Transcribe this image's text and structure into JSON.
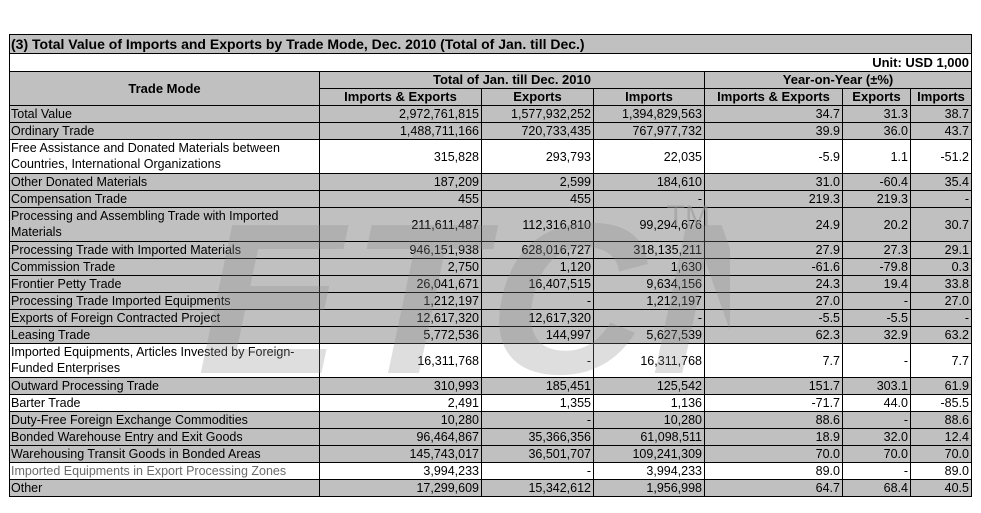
{
  "table": {
    "title": "(3) Total Value of Imports and Exports by Trade Mode, Dec. 2010 (Total of Jan. till Dec.)",
    "unit": "Unit: USD 1,000",
    "headers": {
      "trade_mode": "Trade Mode",
      "group_total": "Total of Jan. till Dec. 2010",
      "group_yoy": "Year-on-Year (±%)",
      "imports_exports": "Imports & Exports",
      "exports": "Exports",
      "imports": "Imports",
      "yoy_imports_exports": "Imports & Exports",
      "yoy_exports": "Exports",
      "yoy_imports": "Imports"
    },
    "rows": [
      {
        "mode": "Total Value",
        "ie": "2,972,761,815",
        "ex": "1,577,932,252",
        "im": "1,394,829,563",
        "yie": "34.7",
        "yex": "31.3",
        "yim": "38.7"
      },
      {
        "mode": "Ordinary Trade",
        "ie": "1,488,711,166",
        "ex": "720,733,435",
        "im": "767,977,732",
        "yie": "39.9",
        "yex": "36.0",
        "yim": "43.7"
      },
      {
        "mode": "Free Assistance and Donated Materials between Countries, International Organizations",
        "ie": "315,828",
        "ex": "293,793",
        "im": "22,035",
        "yie": "-5.9",
        "yex": "1.1",
        "yim": "-51.2"
      },
      {
        "mode": "Other Donated Materials",
        "ie": "187,209",
        "ex": "2,599",
        "im": "184,610",
        "yie": "31.0",
        "yex": "-60.4",
        "yim": "35.4"
      },
      {
        "mode": "Compensation Trade",
        "ie": "455",
        "ex": "455",
        "im": "-",
        "yie": "219.3",
        "yex": "219.3",
        "yim": "-"
      },
      {
        "mode": "Processing and Assembling Trade with Imported Materials",
        "ie": "211,611,487",
        "ex": "112,316,810",
        "im": "99,294,676",
        "yie": "24.9",
        "yex": "20.2",
        "yim": "30.7"
      },
      {
        "mode": "Processing Trade with Imported Materials",
        "ie": "946,151,938",
        "ex": "628,016,727",
        "im": "318,135,211",
        "yie": "27.9",
        "yex": "27.3",
        "yim": "29.1"
      },
      {
        "mode": "Commission Trade",
        "ie": "2,750",
        "ex": "1,120",
        "im": "1,630",
        "yie": "-61.6",
        "yex": "-79.8",
        "yim": "0.3"
      },
      {
        "mode": "Frontier Petty Trade",
        "ie": "26,041,671",
        "ex": "16,407,515",
        "im": "9,634,156",
        "yie": "24.3",
        "yex": "19.4",
        "yim": "33.8"
      },
      {
        "mode": "Processing Trade Imported Equipments",
        "ie": "1,212,197",
        "ex": "-",
        "im": "1,212,197",
        "yie": "27.0",
        "yex": "-",
        "yim": "27.0"
      },
      {
        "mode": "Exports of Foreign Contracted Project",
        "ie": "12,617,320",
        "ex": "12,617,320",
        "im": "-",
        "yie": "-5.5",
        "yex": "-5.5",
        "yim": "-"
      },
      {
        "mode": "Leasing Trade",
        "ie": "5,772,536",
        "ex": "144,997",
        "im": "5,627,539",
        "yie": "62.3",
        "yex": "32.9",
        "yim": "63.2"
      },
      {
        "mode": "Imported Equipments, Articles Invested by Foreign-Funded Enterprises",
        "ie": "16,311,768",
        "ex": "-",
        "im": "16,311,768",
        "yie": "7.7",
        "yex": "-",
        "yim": "7.7"
      },
      {
        "mode": "Outward Processing Trade",
        "ie": "310,993",
        "ex": "185,451",
        "im": "125,542",
        "yie": "151.7",
        "yex": "303.1",
        "yim": "61.9"
      },
      {
        "mode": "Barter Trade",
        "ie": "2,491",
        "ex": "1,355",
        "im": "1,136",
        "yie": "-71.7",
        "yex": "44.0",
        "yim": "-85.5"
      },
      {
        "mode": "Duty-Free Foreign Exchange Commodities",
        "ie": "10,280",
        "ex": "-",
        "im": "10,280",
        "yie": "88.6",
        "yex": "-",
        "yim": "88.6"
      },
      {
        "mode": "Bonded Warehouse Entry and Exit Goods",
        "ie": "96,464,867",
        "ex": "35,366,356",
        "im": "61,098,511",
        "yie": "18.9",
        "yex": "32.0",
        "yim": "12.4"
      },
      {
        "mode": "Warehousing Transit Goods in Bonded Areas",
        "ie": "145,743,017",
        "ex": "36,501,707",
        "im": "109,241,309",
        "yie": "70.0",
        "yex": "70.0",
        "yim": "70.0"
      },
      {
        "mode": "Imported Equipments in Export Processing Zones",
        "ie": "3,994,233",
        "ex": "-",
        "im": "3,994,233",
        "yie": "89.0",
        "yex": "-",
        "yim": "89.0"
      },
      {
        "mode": "Other",
        "ie": "17,299,609",
        "ex": "15,342,612",
        "im": "1,956,998",
        "yie": "64.7",
        "yex": "68.4",
        "yim": "40.5"
      }
    ]
  },
  "watermark": {
    "text": "ETCN",
    "mark": "TM"
  },
  "colors": {
    "header_bg": "#c0c0c0",
    "row_alt": "#c0c0c0",
    "border": "#000000"
  }
}
